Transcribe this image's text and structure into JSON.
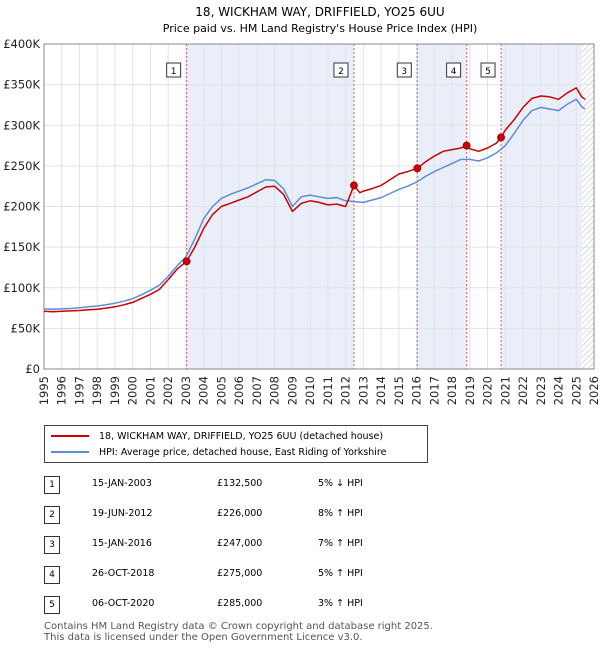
{
  "chart_data": {
    "type": "line",
    "title": "18, WICKHAM WAY, DRIFFIELD, YO25 6UU",
    "subtitle": "Price paid vs. HM Land Registry's House Price Index (HPI)",
    "xlabel": "",
    "ylabel": "",
    "xlim": [
      1995,
      2026
    ],
    "ylim": [
      0,
      400000
    ],
    "x_ticks": [
      "1995",
      "1996",
      "1997",
      "1998",
      "1999",
      "2000",
      "2001",
      "2002",
      "2003",
      "2004",
      "2005",
      "2006",
      "2007",
      "2008",
      "2009",
      "2010",
      "2011",
      "2012",
      "2013",
      "2014",
      "2015",
      "2016",
      "2017",
      "2018",
      "2019",
      "2020",
      "2021",
      "2022",
      "2023",
      "2024",
      "2025",
      "2026"
    ],
    "y_ticks": [
      {
        "value": 0,
        "label": "£0"
      },
      {
        "value": 50000,
        "label": "£50K"
      },
      {
        "value": 100000,
        "label": "£100K"
      },
      {
        "value": 150000,
        "label": "£150K"
      },
      {
        "value": 200000,
        "label": "£200K"
      },
      {
        "value": 250000,
        "label": "£250K"
      },
      {
        "value": 300000,
        "label": "£300K"
      },
      {
        "value": 350000,
        "label": "£350K"
      },
      {
        "value": 400000,
        "label": "£400K"
      }
    ],
    "grid": true,
    "forecast_start": 2025.3,
    "series": [
      {
        "name": "18, WICKHAM WAY, DRIFFIELD, YO25 6UU (detached house)",
        "color": "#cc0000",
        "x": [
          1995,
          1995.5,
          1996,
          1996.5,
          1997,
          1997.5,
          1998,
          1998.5,
          1999,
          1999.5,
          2000,
          2000.5,
          2001,
          2001.5,
          2002,
          2002.5,
          2003.04,
          2003.5,
          2004,
          2004.5,
          2005,
          2005.5,
          2006,
          2006.5,
          2007,
          2007.5,
          2008,
          2008.5,
          2009,
          2009.5,
          2010,
          2010.5,
          2011,
          2011.5,
          2012,
          2012.47,
          2012.8,
          2013,
          2013.5,
          2014,
          2014.5,
          2015,
          2015.5,
          2016.04,
          2016.5,
          2017,
          2017.5,
          2018,
          2018.5,
          2018.82,
          2019,
          2019.5,
          2020,
          2020.5,
          2020.76,
          2021,
          2021.5,
          2022,
          2022.5,
          2023,
          2023.5,
          2024,
          2024.5,
          2025,
          2025.3,
          2025.5
        ],
        "values": [
          71000,
          70500,
          71000,
          71500,
          72000,
          73000,
          73500,
          75000,
          76500,
          79000,
          82000,
          87000,
          92000,
          98000,
          110000,
          123000,
          132500,
          150000,
          173000,
          190000,
          200000,
          204000,
          208000,
          212000,
          218000,
          224000,
          225000,
          215000,
          194000,
          204000,
          207000,
          205000,
          202000,
          203000,
          200000,
          226000,
          217000,
          219000,
          222000,
          226000,
          233000,
          240000,
          243000,
          247000,
          255000,
          262000,
          268000,
          270000,
          272000,
          275000,
          271000,
          268000,
          272000,
          278000,
          285000,
          294000,
          307000,
          322000,
          333000,
          336000,
          335000,
          332000,
          340000,
          346000,
          335000,
          332000
        ]
      },
      {
        "name": "HPI: Average price, detached house, East Riding of Yorkshire",
        "color": "#5b8ed6",
        "x": [
          1995,
          1995.5,
          1996,
          1996.5,
          1997,
          1997.5,
          1998,
          1998.5,
          1999,
          1999.5,
          2000,
          2000.5,
          2001,
          2001.5,
          2002,
          2002.5,
          2003,
          2003.5,
          2004,
          2004.5,
          2005,
          2005.5,
          2006,
          2006.5,
          2007,
          2007.5,
          2008,
          2008.5,
          2009,
          2009.5,
          2010,
          2010.5,
          2011,
          2011.5,
          2012,
          2012.5,
          2013,
          2013.5,
          2014,
          2014.5,
          2015,
          2015.5,
          2016,
          2016.5,
          2017,
          2017.5,
          2018,
          2018.5,
          2019,
          2019.5,
          2020,
          2020.5,
          2021,
          2021.5,
          2022,
          2022.5,
          2023,
          2023.5,
          2024,
          2024.5,
          2025,
          2025.3,
          2025.5
        ],
        "values": [
          74000,
          73500,
          74000,
          74500,
          75500,
          76500,
          77500,
          79000,
          81000,
          83500,
          86500,
          91500,
          97000,
          103000,
          114000,
          127000,
          138000,
          160000,
          185000,
          200000,
          210000,
          215000,
          219000,
          223000,
          228000,
          233000,
          232000,
          222000,
          200000,
          212000,
          214000,
          212000,
          210000,
          211000,
          207000,
          206000,
          205000,
          208000,
          211000,
          216000,
          221000,
          225000,
          230000,
          237000,
          243000,
          248000,
          253000,
          258000,
          258000,
          256000,
          260000,
          266000,
          275000,
          290000,
          306000,
          318000,
          322000,
          320000,
          318000,
          326000,
          332000,
          323000,
          320000
        ]
      }
    ],
    "sales": [
      {
        "num": "1",
        "x": 2003.04,
        "price": 132500
      },
      {
        "num": "2",
        "x": 2012.47,
        "price": 226000
      },
      {
        "num": "3",
        "x": 2016.04,
        "price": 247000
      },
      {
        "num": "4",
        "x": 2018.82,
        "price": 275000
      },
      {
        "num": "5",
        "x": 2020.76,
        "price": 285000
      }
    ]
  },
  "header": {
    "title": "18, WICKHAM WAY, DRIFFIELD, YO25 6UU",
    "subtitle": "Price paid vs. HM Land Registry's House Price Index (HPI)"
  },
  "legend": {
    "property_label": "18, WICKHAM WAY, DRIFFIELD, YO25 6UU (detached house)",
    "property_color": "#cc0000",
    "hpi_label": "HPI: Average price, detached house, East Riding of Yorkshire",
    "hpi_color": "#5b8ed6"
  },
  "sales_table": [
    {
      "num": "1",
      "date": "15-JAN-2003",
      "price": "£132,500",
      "hpi": "5% ↓ HPI"
    },
    {
      "num": "2",
      "date": "19-JUN-2012",
      "price": "£226,000",
      "hpi": "8% ↑ HPI"
    },
    {
      "num": "3",
      "date": "15-JAN-2016",
      "price": "£247,000",
      "hpi": "7% ↑ HPI"
    },
    {
      "num": "4",
      "date": "26-OCT-2018",
      "price": "£275,000",
      "hpi": "5% ↑ HPI"
    },
    {
      "num": "5",
      "date": "06-OCT-2020",
      "price": "£285,000",
      "hpi": "3% ↑ HPI"
    }
  ],
  "footer": {
    "line1": "Contains HM Land Registry data © Crown copyright and database right 2025.",
    "line2": "This data is licensed under the Open Government Licence v3.0."
  },
  "colors": {
    "shade": "#e9eef8",
    "grid": "#dfe3ea",
    "vline": "#e06060"
  }
}
